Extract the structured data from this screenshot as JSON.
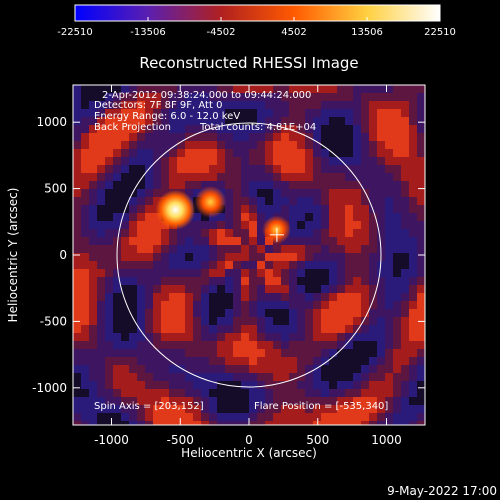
{
  "colorbar": {
    "tick_labels": [
      "-22510",
      "-13506",
      "-4502",
      "4502",
      "13506",
      "22510"
    ],
    "range": [
      -22510,
      22510
    ],
    "colormap": [
      "#0000ff",
      "#5a1fb0",
      "#b02020",
      "#ff5a00",
      "#ffd040",
      "#ffffff"
    ]
  },
  "plot": {
    "title": "Reconstructed RHESSI Image",
    "xlabel": "Heliocentric X (arcsec)",
    "ylabel": "Heliocentric Y (arcsec)",
    "x_ticks": [
      "-1000",
      "-500",
      "0",
      "500",
      "1000"
    ],
    "y_ticks": [
      "-1000",
      "-500",
      "0",
      "500",
      "1000"
    ],
    "info_lines": [
      "2-Apr-2012 09:38:24.000 to 09:44:24.000",
      "Detectors: 7F 8F 9F, Att 0",
      "Energy Range: 6.0 - 12.0 keV"
    ],
    "method": "Back Projection",
    "total_counts": "Total counts: 4.81E+04",
    "spin_axis": "Spin Axis = [203,152]",
    "flare_position": "Flare Position = [-535,340]",
    "axis_color": "#ffffff",
    "background_color": "#000000"
  },
  "footer": {
    "timestamp": "9-May-2022 17:00"
  },
  "chart_data": {
    "type": "heatmap",
    "title": "Reconstructed RHESSI Image",
    "xlabel": "Heliocentric X (arcsec)",
    "ylabel": "Heliocentric Y (arcsec)",
    "xlim": [
      -1280,
      1280
    ],
    "ylim": [
      -1280,
      1280
    ],
    "value_range": [
      -22510,
      22510
    ],
    "solar_disk": {
      "center": [
        0,
        0
      ],
      "radius_arcsec": 960
    },
    "bright_sources": [
      {
        "x": -535,
        "y": 340,
        "level": 22510
      },
      {
        "x": -280,
        "y": 400,
        "level": 15000
      },
      {
        "x": 200,
        "y": 190,
        "level": 12000
      }
    ],
    "spin_axis": [
      203,
      152
    ],
    "grid": false
  }
}
